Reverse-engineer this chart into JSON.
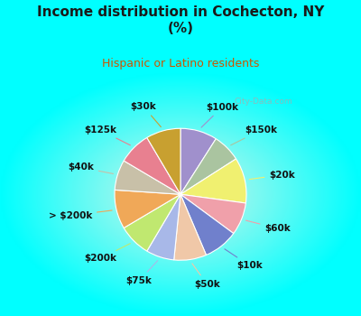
{
  "title": "Income distribution in Cochecton, NY\n(%)",
  "subtitle": "Hispanic or Latino residents",
  "title_color": "#1a1a1a",
  "subtitle_color": "#cc5500",
  "watermark": "City-Data.com",
  "slices": [
    {
      "label": "$100k",
      "value": 8.5,
      "color": "#a090cc"
    },
    {
      "label": "$150k",
      "value": 6.5,
      "color": "#aac4a0"
    },
    {
      "label": "$20k",
      "value": 10.5,
      "color": "#f0f070"
    },
    {
      "label": "$60k",
      "value": 7.5,
      "color": "#f0a0aa"
    },
    {
      "label": "$10k",
      "value": 8.0,
      "color": "#7080cc"
    },
    {
      "label": "$50k",
      "value": 7.5,
      "color": "#f0c8a8"
    },
    {
      "label": "$75k",
      "value": 6.5,
      "color": "#a8b8e8"
    },
    {
      "label": "$200k",
      "value": 7.5,
      "color": "#c0e870"
    },
    {
      "label": "> $200k",
      "value": 9.0,
      "color": "#f0a858"
    },
    {
      "label": "$40k",
      "value": 7.0,
      "color": "#c8c0a8"
    },
    {
      "label": "$125k",
      "value": 7.5,
      "color": "#e88090"
    },
    {
      "label": "$30k",
      "value": 8.0,
      "color": "#c8a030"
    }
  ],
  "label_fontsize": 7.5,
  "label_color": "#111111",
  "startangle": 90
}
